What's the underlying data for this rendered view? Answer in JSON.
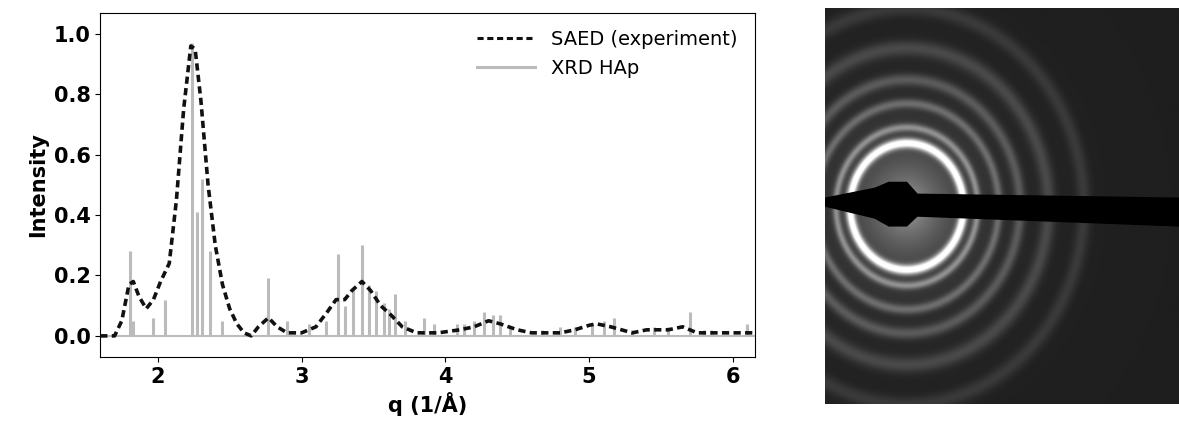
{
  "chart_data": {
    "type": "line",
    "x_label": "q (1/Å)",
    "y_label": "Intensity",
    "xlim": [
      1.6,
      6.15
    ],
    "xticks": [
      2,
      3,
      4,
      5,
      6
    ],
    "ylim": [
      -0.07,
      1.07
    ],
    "yticks": [
      0.0,
      0.2,
      0.4,
      0.6,
      0.8,
      1.0
    ],
    "legend": "upper right",
    "series": [
      {
        "name": "SAED (experiment)",
        "type": "line",
        "color": "#111111",
        "line_style": "dotted",
        "x": [
          1.6,
          1.7,
          1.75,
          1.8,
          1.83,
          1.87,
          1.92,
          1.97,
          2.02,
          2.08,
          2.13,
          2.18,
          2.23,
          2.26,
          2.3,
          2.35,
          2.4,
          2.45,
          2.5,
          2.55,
          2.6,
          2.65,
          2.7,
          2.77,
          2.83,
          2.9,
          3.0,
          3.1,
          3.18,
          3.24,
          3.3,
          3.35,
          3.42,
          3.48,
          3.55,
          3.62,
          3.7,
          3.8,
          3.95,
          4.1,
          4.2,
          4.3,
          4.38,
          4.5,
          4.6,
          4.8,
          4.9,
          5.0,
          5.05,
          5.15,
          5.3,
          5.4,
          5.55,
          5.65,
          5.75,
          5.9,
          6.15
        ],
        "values": [
          0.0,
          0.0,
          0.05,
          0.17,
          0.18,
          0.13,
          0.09,
          0.12,
          0.18,
          0.24,
          0.45,
          0.75,
          0.96,
          0.95,
          0.78,
          0.5,
          0.3,
          0.17,
          0.09,
          0.04,
          0.01,
          0.0,
          0.03,
          0.06,
          0.03,
          0.01,
          0.01,
          0.03,
          0.08,
          0.12,
          0.12,
          0.15,
          0.18,
          0.15,
          0.1,
          0.07,
          0.03,
          0.01,
          0.01,
          0.02,
          0.03,
          0.05,
          0.04,
          0.02,
          0.01,
          0.01,
          0.02,
          0.035,
          0.04,
          0.03,
          0.01,
          0.02,
          0.02,
          0.03,
          0.01,
          0.01,
          0.01
        ]
      },
      {
        "name": "XRD HAp",
        "type": "stem",
        "color": "#bbbbbb",
        "line_style": "solid",
        "x": [
          1.81,
          1.83,
          1.97,
          2.05,
          2.24,
          2.27,
          2.31,
          2.36,
          2.45,
          2.77,
          2.9,
          3.05,
          3.17,
          3.25,
          3.3,
          3.36,
          3.42,
          3.47,
          3.52,
          3.57,
          3.61,
          3.65,
          3.72,
          3.85,
          3.92,
          4.08,
          4.13,
          4.2,
          4.27,
          4.33,
          4.38,
          4.45,
          4.67,
          4.8,
          4.9,
          5.02,
          5.1,
          5.17,
          5.3,
          5.45,
          5.55,
          5.7,
          5.8,
          5.85,
          6.1
        ],
        "values": [
          0.28,
          0.05,
          0.06,
          0.12,
          0.97,
          0.41,
          0.52,
          0.28,
          0.05,
          0.19,
          0.05,
          0.04,
          0.05,
          0.27,
          0.1,
          0.16,
          0.3,
          0.17,
          0.15,
          0.11,
          0.09,
          0.14,
          0.05,
          0.06,
          0.04,
          0.04,
          0.04,
          0.05,
          0.08,
          0.07,
          0.07,
          0.03,
          0.02,
          0.03,
          0.03,
          0.04,
          0.05,
          0.06,
          0.02,
          0.03,
          0.03,
          0.08,
          0.02,
          0.02,
          0.04
        ]
      }
    ]
  }
}
